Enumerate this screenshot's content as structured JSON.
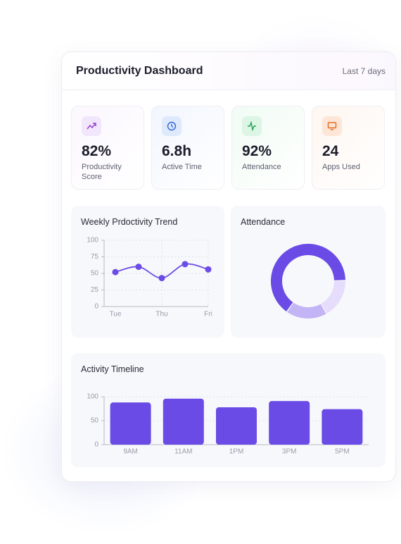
{
  "header": {
    "title": "Productivity Dashboard",
    "range": "Last 7 days"
  },
  "stats": [
    {
      "value": "82%",
      "label": "Productivity Score"
    },
    {
      "value": "6.8h",
      "label": "Active Time"
    },
    {
      "value": "92%",
      "label": "Attendance"
    },
    {
      "value": "24",
      "label": "Apps Used"
    }
  ],
  "chart_data": [
    {
      "type": "line",
      "title": "Weekly Prdoctivity Trend",
      "categories": [
        "Tue",
        null,
        "Thu",
        null,
        "Fri"
      ],
      "values": [
        52,
        60,
        43,
        64,
        56
      ],
      "color": "#6c4ce6",
      "ylim": [
        0,
        100
      ],
      "yticks": [
        0,
        25,
        50,
        75,
        100
      ],
      "grid": true
    },
    {
      "type": "pie",
      "title": "Attendance",
      "values": [
        65,
        17,
        18
      ],
      "colors": [
        "#6a4be6",
        "#e6dcfb",
        "#c3b5f5"
      ],
      "donut": true
    },
    {
      "type": "bar",
      "title": "Activity Timeline",
      "categories": [
        "9AM",
        "11AM",
        "1PM",
        "3PM",
        "5PM"
      ],
      "values": [
        88,
        96,
        78,
        91,
        74
      ],
      "color": "#6a4be6",
      "ylim": [
        0,
        100
      ],
      "yticks": [
        0,
        50,
        100
      ],
      "grid": true
    }
  ]
}
